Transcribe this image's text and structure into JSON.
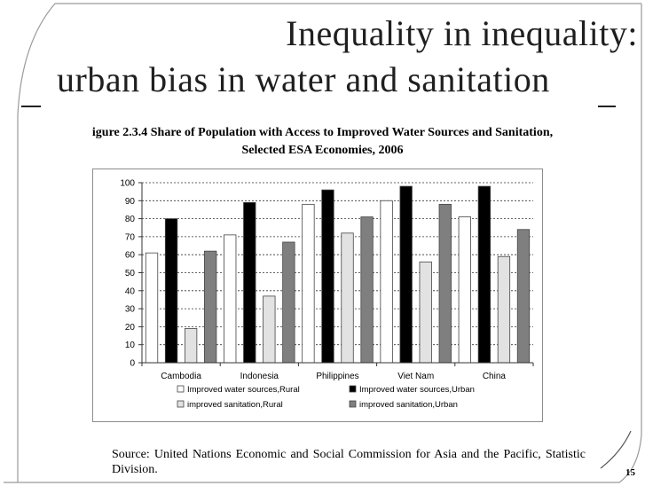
{
  "slide": {
    "title_line1": "Inequality in inequality:",
    "title_line2": "urban bias in water and sanitation",
    "caption_line1": "igure 2.3.4 Share of Population with Access to Improved Water Sources and Sanitation,",
    "caption_line2": "Selected ESA Economies, 2006",
    "source": "Source: United Nations Economic and Social Commission for Asia and the Pacific, Statistic Division.",
    "page_number": "15"
  },
  "chart_data": {
    "type": "bar",
    "title": "",
    "xlabel": "",
    "ylabel": "",
    "categories": [
      "Cambodia",
      "Indonesia",
      "Philippines",
      "Viet Nam",
      "China"
    ],
    "ylim": [
      0,
      100
    ],
    "yticks": [
      0,
      10,
      20,
      30,
      40,
      50,
      60,
      70,
      80,
      90,
      100
    ],
    "grid": "horizontal dashed",
    "legend_position": "bottom",
    "series": [
      {
        "name": "Improved water sources,Rural",
        "color": "#ffffff",
        "values": [
          61,
          71,
          88,
          90,
          81
        ]
      },
      {
        "name": "Improved water sources,Urban",
        "color": "#000000",
        "values": [
          80,
          89,
          96,
          98,
          98
        ]
      },
      {
        "name": "improved sanitation,Rural",
        "color": "#e2e2e2",
        "values": [
          19,
          37,
          72,
          56,
          59
        ]
      },
      {
        "name": "improved sanitation,Urban",
        "color": "#7f7f7f",
        "values": [
          62,
          67,
          81,
          88,
          74
        ]
      }
    ]
  }
}
